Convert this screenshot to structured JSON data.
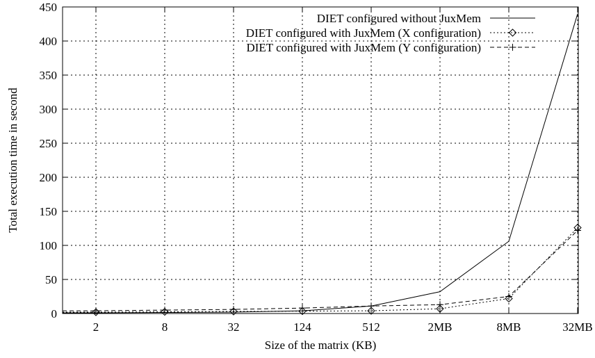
{
  "chart_data": {
    "type": "line",
    "title": "",
    "xlabel": "Size of the matrix (KB)",
    "ylabel": "Total execution time in second",
    "categories": [
      "2",
      "8",
      "32",
      "124",
      "512",
      "2MB",
      "8MB",
      "32MB"
    ],
    "ylim": [
      0,
      450
    ],
    "yticks": [
      0,
      50,
      100,
      150,
      200,
      250,
      300,
      350,
      400,
      450
    ],
    "grid": true,
    "legend_position": "top-right",
    "series": [
      {
        "name": "DIET configured without JuxMem",
        "line_style": "solid",
        "marker": "none",
        "values": [
          1,
          1.5,
          2,
          4,
          11,
          32,
          106,
          440
        ]
      },
      {
        "name": "DIET configured with JuxMem (X configuration)",
        "line_style": "dotted",
        "marker": "diamond",
        "values": [
          2,
          2.5,
          3,
          3.5,
          4,
          7,
          22,
          126
        ]
      },
      {
        "name": "DIET configured with JuxMem (Y configuration)",
        "line_style": "dashed",
        "marker": "plus",
        "values": [
          4,
          5,
          6,
          8,
          11,
          13,
          25,
          122
        ]
      }
    ]
  }
}
